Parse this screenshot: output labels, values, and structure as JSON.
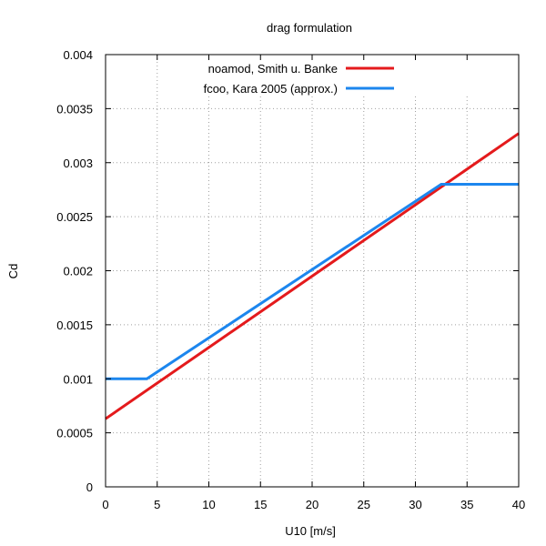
{
  "chart_data": {
    "type": "line",
    "title": "drag formulation",
    "xlabel": "U10 [m/s]",
    "ylabel": "Cd",
    "xlim": [
      0,
      40
    ],
    "ylim": [
      0,
      0.004
    ],
    "xticks": [
      0,
      5,
      10,
      15,
      20,
      25,
      30,
      35,
      40
    ],
    "xtick_labels": [
      "0",
      "5",
      "10",
      "15",
      "20",
      "25",
      "30",
      "35",
      "40"
    ],
    "yticks": [
      0,
      0.0005,
      0.001,
      0.0015,
      0.002,
      0.0025,
      0.003,
      0.0035,
      0.004
    ],
    "ytick_labels": [
      "0",
      "0.0005",
      "0.001",
      "0.0015",
      "0.002",
      "0.0025",
      "0.003",
      "0.0035",
      "0.004"
    ],
    "grid": true,
    "legend_position": "top-right",
    "series": [
      {
        "name": "noamod, Smith u. Banke",
        "color": "#e41a1c",
        "x": [
          0,
          40
        ],
        "y": [
          0.00063,
          0.00327
        ]
      },
      {
        "name": "fcoo, Kara 2005 (approx.)",
        "color": "#1c86ee",
        "x": [
          0,
          4,
          32.5,
          40
        ],
        "y": [
          0.001,
          0.001,
          0.0028,
          0.0028
        ]
      }
    ]
  }
}
